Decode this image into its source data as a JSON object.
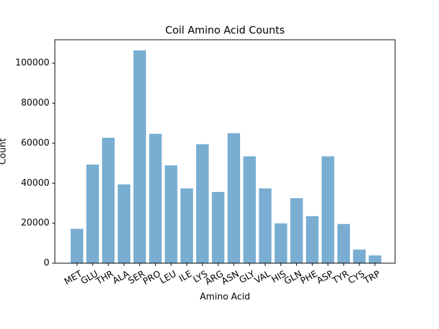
{
  "chart_data": {
    "type": "bar",
    "title": "Coil Amino Acid Counts",
    "xlabel": "Amino Acid",
    "ylabel": "Count",
    "categories": [
      "MET",
      "GLU",
      "THR",
      "ALA",
      "SER",
      "PRO",
      "LEU",
      "ILE",
      "LYS",
      "ARG",
      "ASN",
      "GLY",
      "VAL",
      "HIS",
      "GLN",
      "PHE",
      "ASP",
      "TYR",
      "CYS",
      "TRP"
    ],
    "values": [
      17200,
      49300,
      62700,
      39400,
      106400,
      64700,
      48900,
      37400,
      59500,
      35600,
      65000,
      53400,
      37400,
      19900,
      32500,
      23500,
      53400,
      19600,
      6800,
      3900
    ],
    "ylim": [
      0,
      111700
    ],
    "yticks": [
      0,
      20000,
      40000,
      60000,
      80000,
      100000
    ],
    "ytick_labels": [
      "0",
      "20000",
      "40000",
      "60000",
      "80000",
      "100000"
    ],
    "bar_color": "#1f77b4",
    "bar_alpha": 0.6,
    "grid": false,
    "legend": "none"
  }
}
